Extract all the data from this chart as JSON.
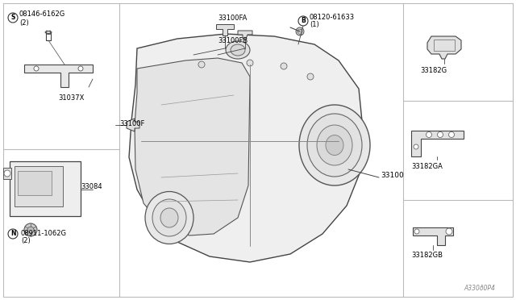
{
  "bg_color": "#ffffff",
  "line_color": "#444444",
  "text_color": "#000000",
  "part_labels": {
    "main_assembly": "33100",
    "bracket_s": "08146-6162G",
    "bracket_s_qty": "(2)",
    "bracket_part": "31037X",
    "module": "33084",
    "nut_n": "08911-1062G",
    "nut_n_qty": "(2)",
    "bolt_b": "08120-61633",
    "bolt_b_qty": "(1)",
    "cover_fa": "33100FA",
    "cover_fb": "33100FB",
    "cover_f": "33100F",
    "bracket_g": "33182G",
    "bracket_ga": "33182GA",
    "bracket_gb": "33182GB"
  },
  "watermark": "A330ð0P4",
  "font_size_label": 6.5,
  "font_size_small": 6.0,
  "font_size_watermark": 5.5
}
